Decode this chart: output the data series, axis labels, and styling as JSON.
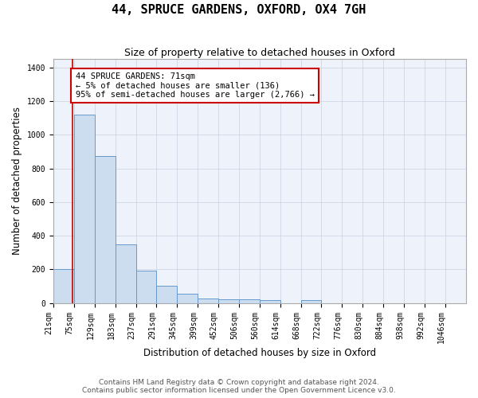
{
  "title": "44, SPRUCE GARDENS, OXFORD, OX4 7GH",
  "subtitle": "Size of property relative to detached houses in Oxford",
  "xlabel": "Distribution of detached houses by size in Oxford",
  "ylabel": "Number of detached properties",
  "bin_edges": [
    21,
    75,
    129,
    183,
    237,
    291,
    345,
    399,
    452,
    506,
    560,
    614,
    668,
    722,
    776,
    830,
    884,
    938,
    992,
    1046,
    1100
  ],
  "bar_heights": [
    200,
    1120,
    875,
    350,
    190,
    100,
    55,
    25,
    20,
    20,
    15,
    0,
    15,
    0,
    0,
    0,
    0,
    0,
    0,
    0
  ],
  "bar_color": "#ccddf0",
  "bar_edge_color": "#6699cc",
  "vline_x": 71,
  "vline_color": "#cc0000",
  "annotation_text": "44 SPRUCE GARDENS: 71sqm\n← 5% of detached houses are smaller (136)\n95% of semi-detached houses are larger (2,766) →",
  "annotation_box_color": "#cc0000",
  "annotation_text_color": "#000000",
  "ylim": [
    0,
    1450
  ],
  "yticks": [
    0,
    200,
    400,
    600,
    800,
    1000,
    1200,
    1400
  ],
  "plot_bg_color": "#eef2fa",
  "footer_line1": "Contains HM Land Registry data © Crown copyright and database right 2024.",
  "footer_line2": "Contains public sector information licensed under the Open Government Licence v3.0.",
  "title_fontsize": 11,
  "subtitle_fontsize": 9,
  "axis_label_fontsize": 8.5,
  "tick_fontsize": 7,
  "annotation_fontsize": 7.5,
  "footer_fontsize": 6.5
}
